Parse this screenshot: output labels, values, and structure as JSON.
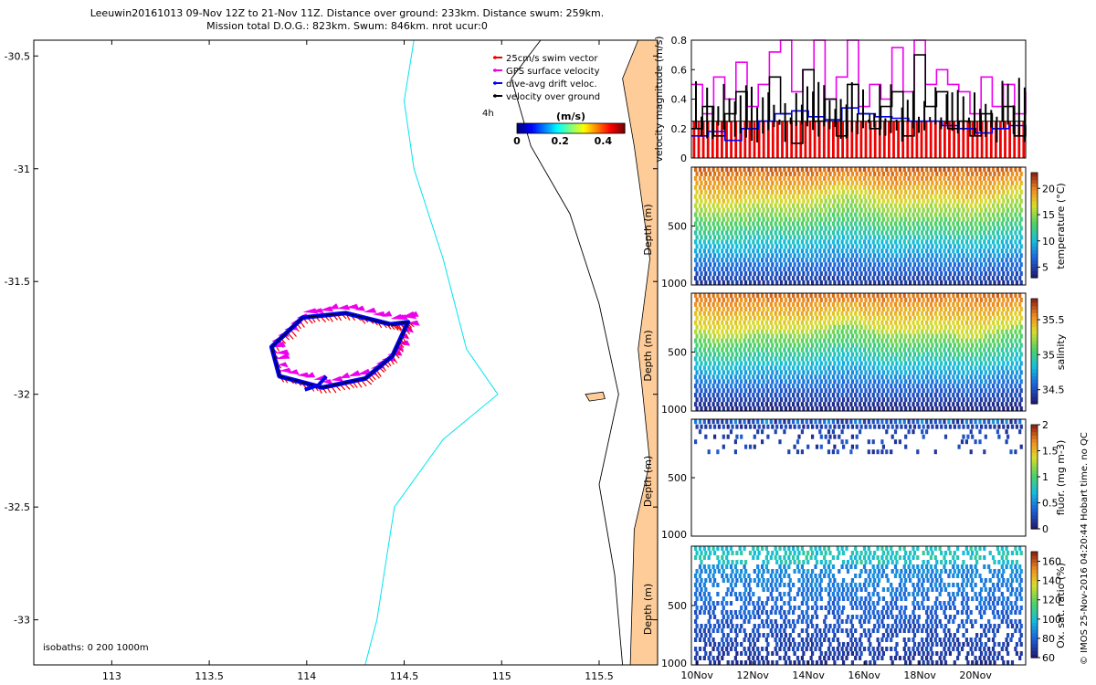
{
  "title": {
    "line1": "Leeuwin20161013 09-Nov 12Z to 21-Nov 11Z. Distance over ground: 233km. Distance swum: 259km.",
    "line2": "Mission total D.O.G.: 823km. Swum: 846km. nrot ucur:0"
  },
  "credit": "© IMOS 25-Nov-2016 04:20:44 Hobart time. no QC",
  "colors": {
    "land": "#fdcc99",
    "isobath": "#00e5ee",
    "swim": "#ee0000",
    "gps": "#ee00ee",
    "drift": "#0000ee",
    "ground": "#000000"
  },
  "chart_data": [
    {
      "type": "map",
      "x_ticks": [
        "113",
        "113.5",
        "114",
        "114.5",
        "115",
        "115.5"
      ],
      "x_tick_values": [
        113,
        113.5,
        114,
        114.5,
        115,
        115.5
      ],
      "y_ticks": [
        "-30.5",
        "-31",
        "-31.5",
        "-32",
        "-32.5",
        "-33"
      ],
      "y_tick_values": [
        -30.5,
        -31,
        -31.5,
        -32,
        -32.5,
        -33
      ],
      "xlim": [
        112.6,
        115.8
      ],
      "ylim": [
        -33.2,
        -30.43
      ],
      "legend": {
        "position": "top-right",
        "items": [
          {
            "label": "25cm/s swim vector",
            "color": "#ee0000"
          },
          {
            "label": "GPS surface velocity",
            "color": "#ee00ee"
          },
          {
            "label": "dive-avg drift veloc.",
            "color": "#0000ee"
          },
          {
            "label": "velocity over ground",
            "color": "#000000"
          }
        ],
        "interval_label": "4h"
      },
      "colorbar": {
        "label": "(m/s)",
        "ticks": [
          "0",
          "0.2",
          "0.4"
        ],
        "tick_values": [
          0,
          0.2,
          0.4
        ],
        "range": [
          0,
          0.5
        ]
      },
      "isobaths_label": "isobaths: 0   200  1000m",
      "coast": [
        [
          115.7,
          -30.43
        ],
        [
          115.62,
          -30.6
        ],
        [
          115.68,
          -30.9
        ],
        [
          115.76,
          -31.4
        ],
        [
          115.7,
          -31.8
        ],
        [
          115.76,
          -32.3
        ],
        [
          115.68,
          -32.6
        ],
        [
          115.66,
          -33.2
        ]
      ],
      "isobath_1000": [
        [
          114.55,
          -30.43
        ],
        [
          114.5,
          -30.7
        ],
        [
          114.55,
          -31.0
        ],
        [
          114.7,
          -31.4
        ],
        [
          114.82,
          -31.8
        ],
        [
          114.98,
          -32.0
        ],
        [
          114.7,
          -32.2
        ],
        [
          114.45,
          -32.5
        ],
        [
          114.36,
          -33.0
        ],
        [
          114.3,
          -33.2
        ]
      ],
      "isobath_200": [
        [
          115.2,
          -30.43
        ],
        [
          115.05,
          -30.6
        ],
        [
          115.15,
          -30.9
        ],
        [
          115.35,
          -31.2
        ],
        [
          115.5,
          -31.6
        ],
        [
          115.6,
          -32.0
        ],
        [
          115.5,
          -32.4
        ],
        [
          115.58,
          -32.8
        ],
        [
          115.62,
          -33.2
        ]
      ],
      "track": [
        [
          114.43,
          -31.69
        ],
        [
          114.2,
          -31.64
        ],
        [
          113.98,
          -31.66
        ],
        [
          113.82,
          -31.79
        ],
        [
          113.86,
          -31.92
        ],
        [
          114.08,
          -31.97
        ],
        [
          114.3,
          -31.93
        ],
        [
          114.44,
          -31.83
        ],
        [
          114.52,
          -31.68
        ],
        [
          114.43,
          -31.69
        ]
      ],
      "track_inner": [
        [
          114.1,
          -31.92
        ],
        [
          114.06,
          -31.96
        ],
        [
          113.99,
          -31.98
        ]
      ],
      "island": [
        [
          115.43,
          -32.0
        ],
        [
          115.52,
          -31.99
        ],
        [
          115.53,
          -32.02
        ],
        [
          115.45,
          -32.03
        ]
      ]
    },
    {
      "type": "line",
      "ylabel": "velocity magnitude (m/s)",
      "ylim": [
        0,
        0.8
      ],
      "y_ticks": [
        "0",
        "0.2",
        "0.4",
        "0.6",
        "0.8"
      ],
      "y_tick_values": [
        0,
        0.2,
        0.4,
        0.6,
        0.8
      ],
      "x_range_days": [
        9.8,
        21.8
      ],
      "series": [
        {
          "color": "#ee00ee",
          "x": [
            9.8,
            10.2,
            10.6,
            11.0,
            11.4,
            11.8,
            12.2,
            12.6,
            13.0,
            13.4,
            13.8,
            14.2,
            14.6,
            15.0,
            15.4,
            15.8,
            16.2,
            16.6,
            17.0,
            17.4,
            17.8,
            18.2,
            18.6,
            19.0,
            19.4,
            19.8,
            20.2,
            20.6,
            21.0,
            21.4,
            21.8
          ],
          "values": [
            0.5,
            0.3,
            0.55,
            0.4,
            0.65,
            0.35,
            0.5,
            0.72,
            0.8,
            0.45,
            0.6,
            0.8,
            0.4,
            0.55,
            0.8,
            0.35,
            0.5,
            0.4,
            0.75,
            0.45,
            0.8,
            0.5,
            0.6,
            0.5,
            0.45,
            0.3,
            0.55,
            0.35,
            0.5,
            0.3,
            0.45
          ]
        },
        {
          "color": "#000000",
          "x": [
            9.8,
            10.2,
            10.6,
            11.0,
            11.4,
            11.8,
            12.2,
            12.6,
            13.0,
            13.4,
            13.8,
            14.2,
            14.6,
            15.0,
            15.4,
            15.8,
            16.2,
            16.6,
            17.0,
            17.4,
            17.8,
            18.2,
            18.6,
            19.0,
            19.4,
            19.8,
            20.2,
            20.6,
            21.0,
            21.4,
            21.8
          ],
          "values": [
            0.2,
            0.35,
            0.15,
            0.3,
            0.45,
            0.2,
            0.25,
            0.55,
            0.3,
            0.1,
            0.6,
            0.25,
            0.4,
            0.15,
            0.5,
            0.3,
            0.2,
            0.35,
            0.45,
            0.15,
            0.7,
            0.35,
            0.45,
            0.2,
            0.25,
            0.15,
            0.3,
            0.2,
            0.35,
            0.15,
            0.2
          ]
        },
        {
          "color": "#0000ee",
          "x": [
            9.8,
            10.4,
            11.0,
            11.6,
            12.2,
            12.8,
            13.4,
            14.0,
            14.6,
            15.2,
            15.8,
            16.4,
            17.0,
            17.6,
            18.2,
            18.8,
            19.4,
            20.0,
            20.6,
            21.2,
            21.8
          ],
          "values": [
            0.15,
            0.18,
            0.12,
            0.2,
            0.25,
            0.3,
            0.32,
            0.28,
            0.26,
            0.34,
            0.3,
            0.28,
            0.27,
            0.25,
            0.25,
            0.22,
            0.2,
            0.17,
            0.2,
            0.22,
            0.2
          ]
        },
        {
          "color": "#ee0000",
          "type": "bars",
          "value": 0.25,
          "count": 72
        }
      ]
    },
    {
      "type": "heatmap",
      "variable": "temperature",
      "ylabel": "Depth (m)",
      "clabel": "temperature (°C)",
      "c_ticks": [
        "5",
        "10",
        "15",
        "20"
      ],
      "c_tick_values": [
        5,
        10,
        15,
        20
      ],
      "clim": [
        3,
        23
      ],
      "y_ticks": [
        "500",
        "1000"
      ],
      "y_tick_values": [
        500,
        1000
      ],
      "ylim": [
        0,
        1000
      ],
      "max_depth": 1000
    },
    {
      "type": "heatmap",
      "variable": "salinity",
      "ylabel": "Depth (m)",
      "clabel": "salinity",
      "c_ticks": [
        "34.5",
        "35",
        "35.5"
      ],
      "c_tick_values": [
        34.5,
        35,
        35.5
      ],
      "clim": [
        34.3,
        35.8
      ],
      "y_ticks": [
        "500",
        "1000"
      ],
      "y_tick_values": [
        500,
        1000
      ],
      "ylim": [
        0,
        1000
      ],
      "max_depth": 1000
    },
    {
      "type": "heatmap",
      "variable": "fluorescence",
      "ylabel": "Depth (m)",
      "clabel": "fluor. (mg m-3)",
      "c_ticks": [
        "0",
        "0.5",
        "1",
        "1.5",
        "2"
      ],
      "c_tick_values": [
        0,
        0.5,
        1,
        1.5,
        2
      ],
      "clim": [
        0,
        2
      ],
      "y_ticks": [
        "500",
        "1000"
      ],
      "y_tick_values": [
        500,
        1000
      ],
      "ylim": [
        0,
        1000
      ],
      "max_depth": 300
    },
    {
      "type": "heatmap",
      "variable": "oxygen saturation",
      "ylabel": "Depth (m)",
      "clabel": "Ox. sat. ratio (%)",
      "c_ticks": [
        "60",
        "80",
        "100",
        "120",
        "140",
        "160"
      ],
      "c_tick_values": [
        60,
        80,
        100,
        120,
        140,
        160
      ],
      "clim": [
        60,
        170
      ],
      "y_ticks": [
        "500",
        "1000"
      ],
      "y_tick_values": [
        500,
        1000
      ],
      "ylim": [
        0,
        1000
      ],
      "max_depth": 1000,
      "x_ticks": [
        "10Nov",
        "12Nov",
        "14Nov",
        "16Nov",
        "18Nov",
        "20Nov"
      ],
      "x_tick_days": [
        10,
        12,
        14,
        16,
        18,
        20
      ],
      "x_range_days": [
        9.8,
        21.8
      ]
    }
  ]
}
